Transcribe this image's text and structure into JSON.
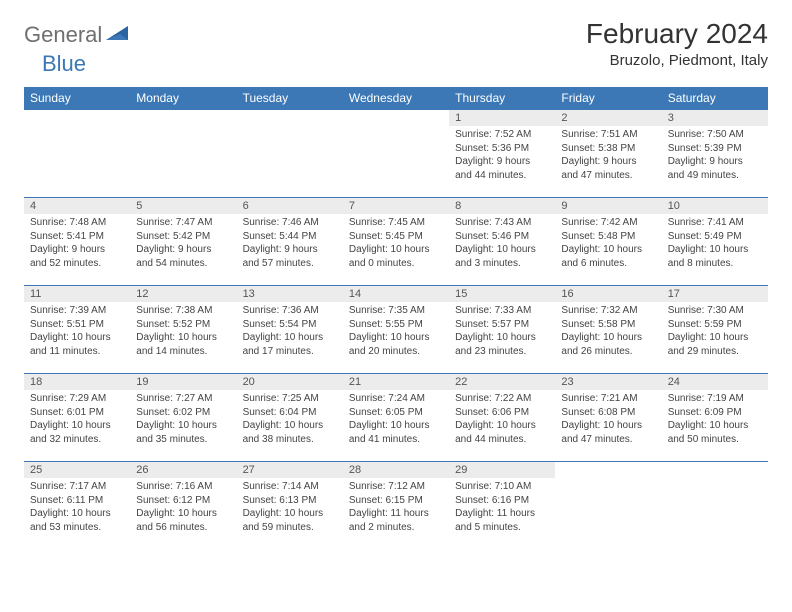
{
  "logo": {
    "part1": "General",
    "part2": "Blue"
  },
  "title": "February 2024",
  "location": "Bruzolo, Piedmont, Italy",
  "dayHeaders": [
    "Sunday",
    "Monday",
    "Tuesday",
    "Wednesday",
    "Thursday",
    "Friday",
    "Saturday"
  ],
  "colors": {
    "headerBg": "#3b78b5",
    "headerText": "#ffffff",
    "dayNumBg": "#ececec",
    "borderColor": "#3b78b5",
    "logoGray": "#6f6f6f",
    "logoBlue": "#3b78b5"
  },
  "weeks": [
    [
      {
        "num": "",
        "sunrise": "",
        "sunset": "",
        "daylight1": "",
        "daylight2": ""
      },
      {
        "num": "",
        "sunrise": "",
        "sunset": "",
        "daylight1": "",
        "daylight2": ""
      },
      {
        "num": "",
        "sunrise": "",
        "sunset": "",
        "daylight1": "",
        "daylight2": ""
      },
      {
        "num": "",
        "sunrise": "",
        "sunset": "",
        "daylight1": "",
        "daylight2": ""
      },
      {
        "num": "1",
        "sunrise": "Sunrise: 7:52 AM",
        "sunset": "Sunset: 5:36 PM",
        "daylight1": "Daylight: 9 hours",
        "daylight2": "and 44 minutes."
      },
      {
        "num": "2",
        "sunrise": "Sunrise: 7:51 AM",
        "sunset": "Sunset: 5:38 PM",
        "daylight1": "Daylight: 9 hours",
        "daylight2": "and 47 minutes."
      },
      {
        "num": "3",
        "sunrise": "Sunrise: 7:50 AM",
        "sunset": "Sunset: 5:39 PM",
        "daylight1": "Daylight: 9 hours",
        "daylight2": "and 49 minutes."
      }
    ],
    [
      {
        "num": "4",
        "sunrise": "Sunrise: 7:48 AM",
        "sunset": "Sunset: 5:41 PM",
        "daylight1": "Daylight: 9 hours",
        "daylight2": "and 52 minutes."
      },
      {
        "num": "5",
        "sunrise": "Sunrise: 7:47 AM",
        "sunset": "Sunset: 5:42 PM",
        "daylight1": "Daylight: 9 hours",
        "daylight2": "and 54 minutes."
      },
      {
        "num": "6",
        "sunrise": "Sunrise: 7:46 AM",
        "sunset": "Sunset: 5:44 PM",
        "daylight1": "Daylight: 9 hours",
        "daylight2": "and 57 minutes."
      },
      {
        "num": "7",
        "sunrise": "Sunrise: 7:45 AM",
        "sunset": "Sunset: 5:45 PM",
        "daylight1": "Daylight: 10 hours",
        "daylight2": "and 0 minutes."
      },
      {
        "num": "8",
        "sunrise": "Sunrise: 7:43 AM",
        "sunset": "Sunset: 5:46 PM",
        "daylight1": "Daylight: 10 hours",
        "daylight2": "and 3 minutes."
      },
      {
        "num": "9",
        "sunrise": "Sunrise: 7:42 AM",
        "sunset": "Sunset: 5:48 PM",
        "daylight1": "Daylight: 10 hours",
        "daylight2": "and 6 minutes."
      },
      {
        "num": "10",
        "sunrise": "Sunrise: 7:41 AM",
        "sunset": "Sunset: 5:49 PM",
        "daylight1": "Daylight: 10 hours",
        "daylight2": "and 8 minutes."
      }
    ],
    [
      {
        "num": "11",
        "sunrise": "Sunrise: 7:39 AM",
        "sunset": "Sunset: 5:51 PM",
        "daylight1": "Daylight: 10 hours",
        "daylight2": "and 11 minutes."
      },
      {
        "num": "12",
        "sunrise": "Sunrise: 7:38 AM",
        "sunset": "Sunset: 5:52 PM",
        "daylight1": "Daylight: 10 hours",
        "daylight2": "and 14 minutes."
      },
      {
        "num": "13",
        "sunrise": "Sunrise: 7:36 AM",
        "sunset": "Sunset: 5:54 PM",
        "daylight1": "Daylight: 10 hours",
        "daylight2": "and 17 minutes."
      },
      {
        "num": "14",
        "sunrise": "Sunrise: 7:35 AM",
        "sunset": "Sunset: 5:55 PM",
        "daylight1": "Daylight: 10 hours",
        "daylight2": "and 20 minutes."
      },
      {
        "num": "15",
        "sunrise": "Sunrise: 7:33 AM",
        "sunset": "Sunset: 5:57 PM",
        "daylight1": "Daylight: 10 hours",
        "daylight2": "and 23 minutes."
      },
      {
        "num": "16",
        "sunrise": "Sunrise: 7:32 AM",
        "sunset": "Sunset: 5:58 PM",
        "daylight1": "Daylight: 10 hours",
        "daylight2": "and 26 minutes."
      },
      {
        "num": "17",
        "sunrise": "Sunrise: 7:30 AM",
        "sunset": "Sunset: 5:59 PM",
        "daylight1": "Daylight: 10 hours",
        "daylight2": "and 29 minutes."
      }
    ],
    [
      {
        "num": "18",
        "sunrise": "Sunrise: 7:29 AM",
        "sunset": "Sunset: 6:01 PM",
        "daylight1": "Daylight: 10 hours",
        "daylight2": "and 32 minutes."
      },
      {
        "num": "19",
        "sunrise": "Sunrise: 7:27 AM",
        "sunset": "Sunset: 6:02 PM",
        "daylight1": "Daylight: 10 hours",
        "daylight2": "and 35 minutes."
      },
      {
        "num": "20",
        "sunrise": "Sunrise: 7:25 AM",
        "sunset": "Sunset: 6:04 PM",
        "daylight1": "Daylight: 10 hours",
        "daylight2": "and 38 minutes."
      },
      {
        "num": "21",
        "sunrise": "Sunrise: 7:24 AM",
        "sunset": "Sunset: 6:05 PM",
        "daylight1": "Daylight: 10 hours",
        "daylight2": "and 41 minutes."
      },
      {
        "num": "22",
        "sunrise": "Sunrise: 7:22 AM",
        "sunset": "Sunset: 6:06 PM",
        "daylight1": "Daylight: 10 hours",
        "daylight2": "and 44 minutes."
      },
      {
        "num": "23",
        "sunrise": "Sunrise: 7:21 AM",
        "sunset": "Sunset: 6:08 PM",
        "daylight1": "Daylight: 10 hours",
        "daylight2": "and 47 minutes."
      },
      {
        "num": "24",
        "sunrise": "Sunrise: 7:19 AM",
        "sunset": "Sunset: 6:09 PM",
        "daylight1": "Daylight: 10 hours",
        "daylight2": "and 50 minutes."
      }
    ],
    [
      {
        "num": "25",
        "sunrise": "Sunrise: 7:17 AM",
        "sunset": "Sunset: 6:11 PM",
        "daylight1": "Daylight: 10 hours",
        "daylight2": "and 53 minutes."
      },
      {
        "num": "26",
        "sunrise": "Sunrise: 7:16 AM",
        "sunset": "Sunset: 6:12 PM",
        "daylight1": "Daylight: 10 hours",
        "daylight2": "and 56 minutes."
      },
      {
        "num": "27",
        "sunrise": "Sunrise: 7:14 AM",
        "sunset": "Sunset: 6:13 PM",
        "daylight1": "Daylight: 10 hours",
        "daylight2": "and 59 minutes."
      },
      {
        "num": "28",
        "sunrise": "Sunrise: 7:12 AM",
        "sunset": "Sunset: 6:15 PM",
        "daylight1": "Daylight: 11 hours",
        "daylight2": "and 2 minutes."
      },
      {
        "num": "29",
        "sunrise": "Sunrise: 7:10 AM",
        "sunset": "Sunset: 6:16 PM",
        "daylight1": "Daylight: 11 hours",
        "daylight2": "and 5 minutes."
      },
      {
        "num": "",
        "sunrise": "",
        "sunset": "",
        "daylight1": "",
        "daylight2": ""
      },
      {
        "num": "",
        "sunrise": "",
        "sunset": "",
        "daylight1": "",
        "daylight2": ""
      }
    ]
  ]
}
